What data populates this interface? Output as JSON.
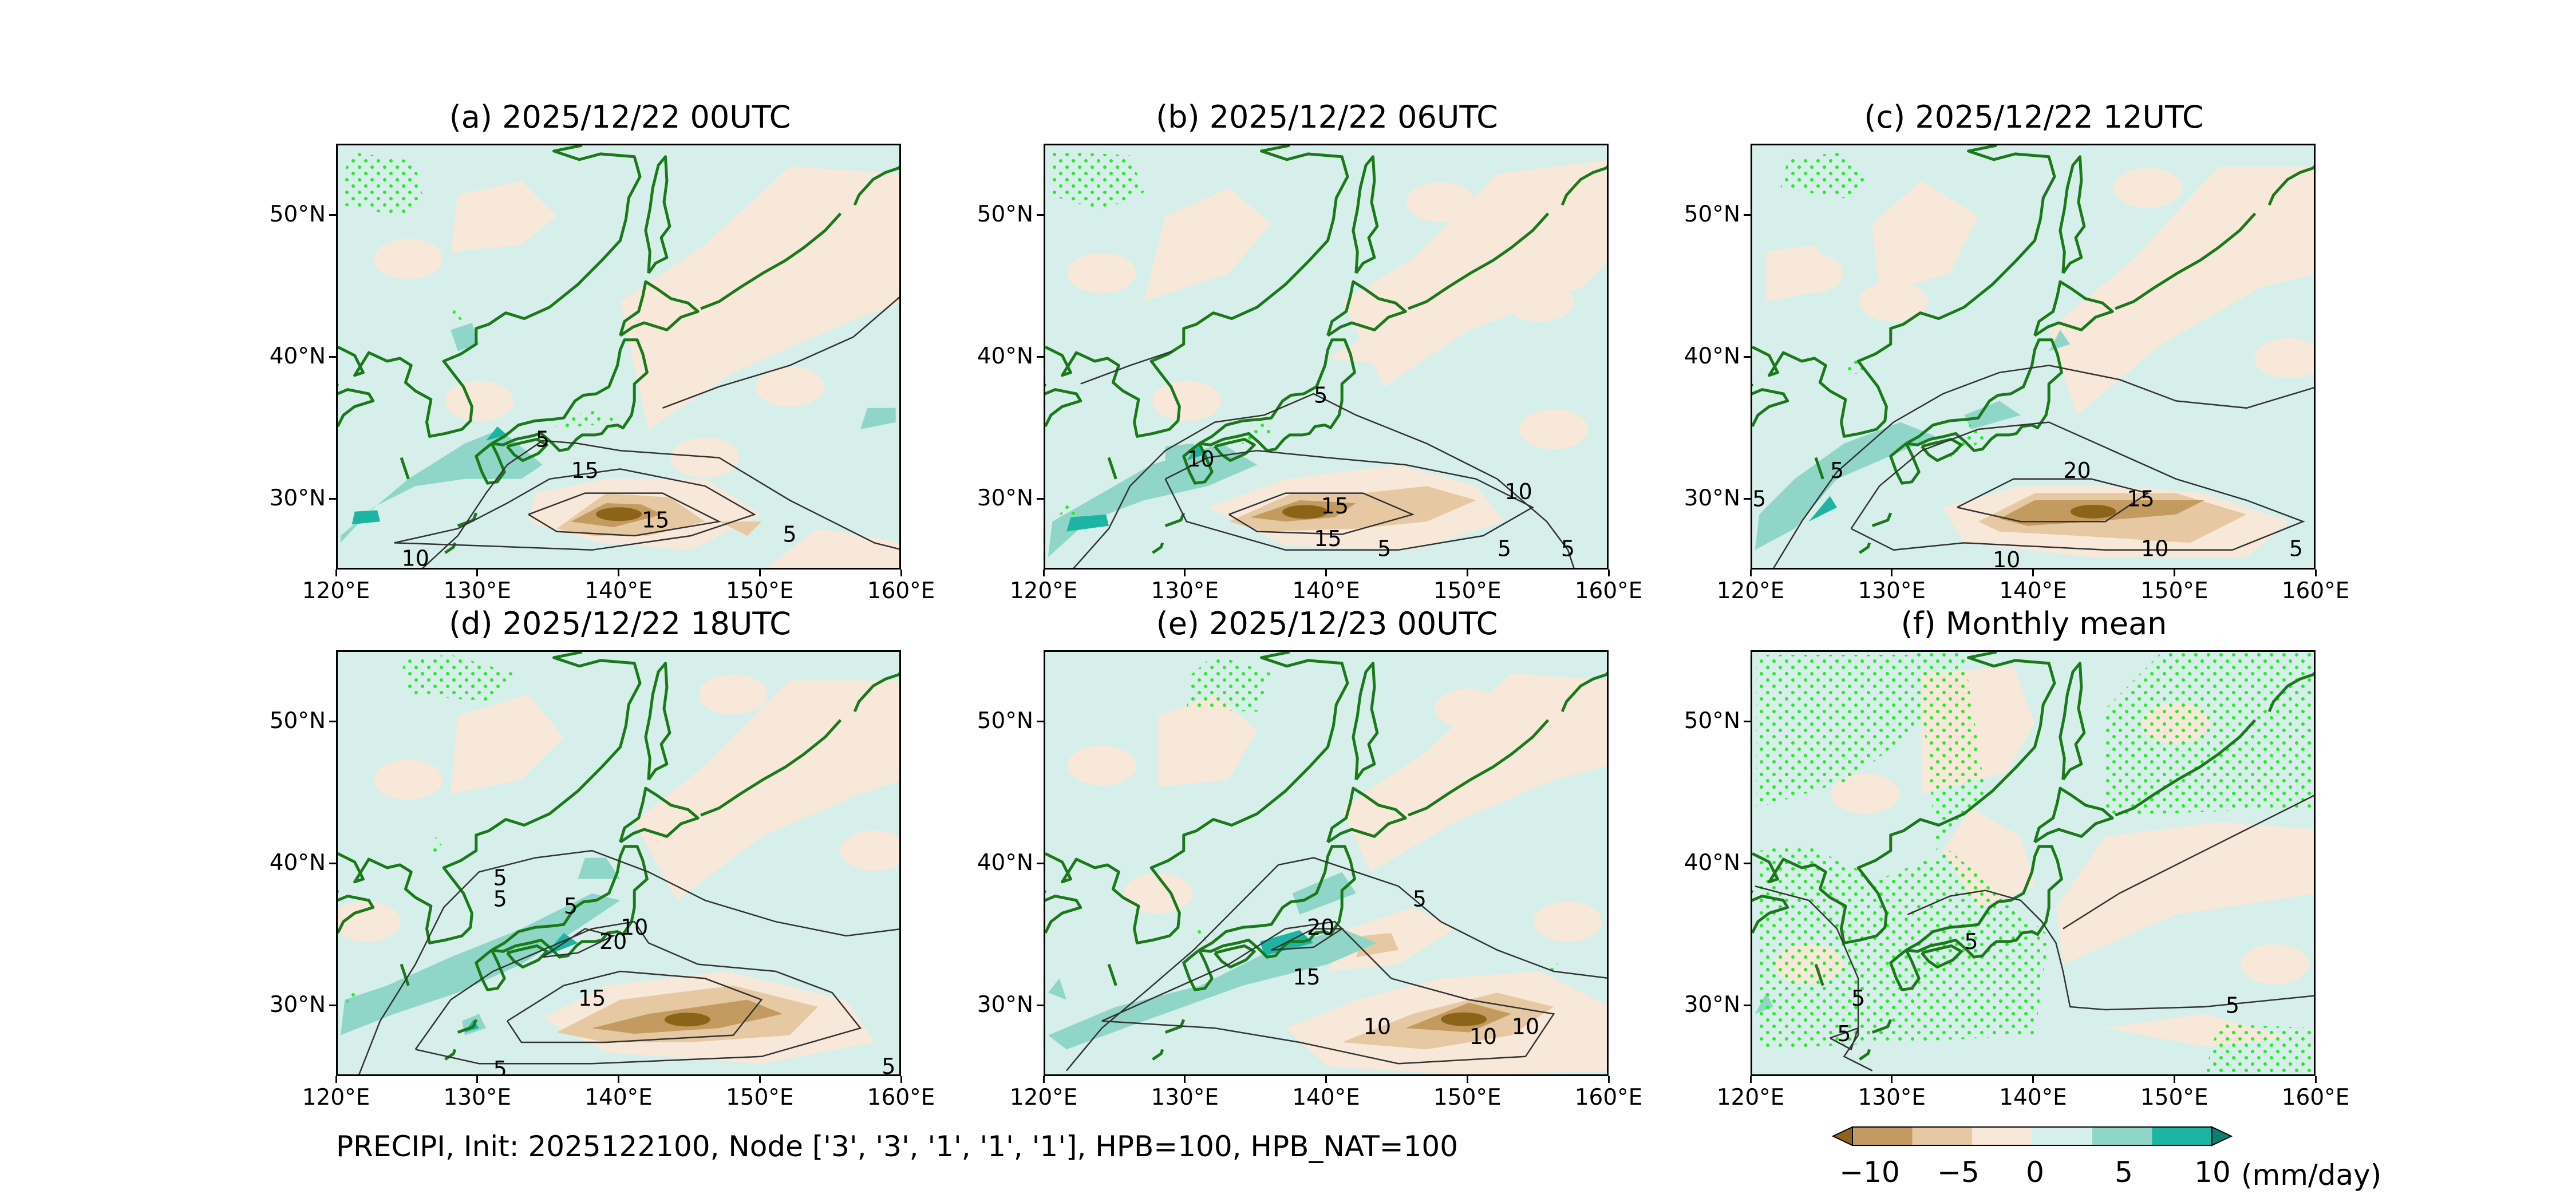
{
  "panels": [
    {
      "title": "(a) 2025/12/22 00UTC",
      "contour_labels": [
        "5",
        "15",
        "15",
        "10",
        "5"
      ]
    },
    {
      "title": "(b) 2025/12/22 06UTC",
      "contour_labels": [
        "5",
        "10",
        "15",
        "15",
        "10",
        "5",
        "5",
        "5"
      ]
    },
    {
      "title": "(c) 2025/12/22 12UTC",
      "contour_labels": [
        "5",
        "5",
        "20",
        "15",
        "10",
        "10",
        "5"
      ]
    },
    {
      "title": "(d) 2025/12/22 18UTC",
      "contour_labels": [
        "5",
        "5",
        "5",
        "10",
        "20",
        "15",
        "5",
        "5"
      ]
    },
    {
      "title": "(e) 2025/12/23 00UTC",
      "contour_labels": [
        "5",
        "20",
        "15",
        "10",
        "10",
        "10"
      ]
    },
    {
      "title": "(f) Monthly mean",
      "contour_labels": [
        "5",
        "5",
        "5",
        "5"
      ]
    }
  ],
  "lon_ticks": [
    "120°E",
    "130°E",
    "140°E",
    "150°E",
    "160°E"
  ],
  "lat_ticks": [
    "50°N",
    "40°N",
    "30°N"
  ],
  "caption": "PRECIPI, Init: 2025122100, Node ['3', '3', '1', '1', '1'], HPB=100, HPB_NAT=100",
  "colorbar": {
    "tick_labels": [
      "−10",
      "−5",
      "0",
      "5",
      "10"
    ],
    "units": "(mm/day)",
    "colors": [
      "#8c6418",
      "#c39a5f",
      "#e6c9a2",
      "#f7e8da",
      "#d7efea",
      "#8fd6c8",
      "#1cb5a3",
      "#0a7f73"
    ]
  },
  "colors": {
    "coastline": "#1a7a1a",
    "stipple": "#22ee22",
    "contour": "#333333",
    "positive_light": "#d7efea",
    "negative_light": "#f7e8da"
  }
}
